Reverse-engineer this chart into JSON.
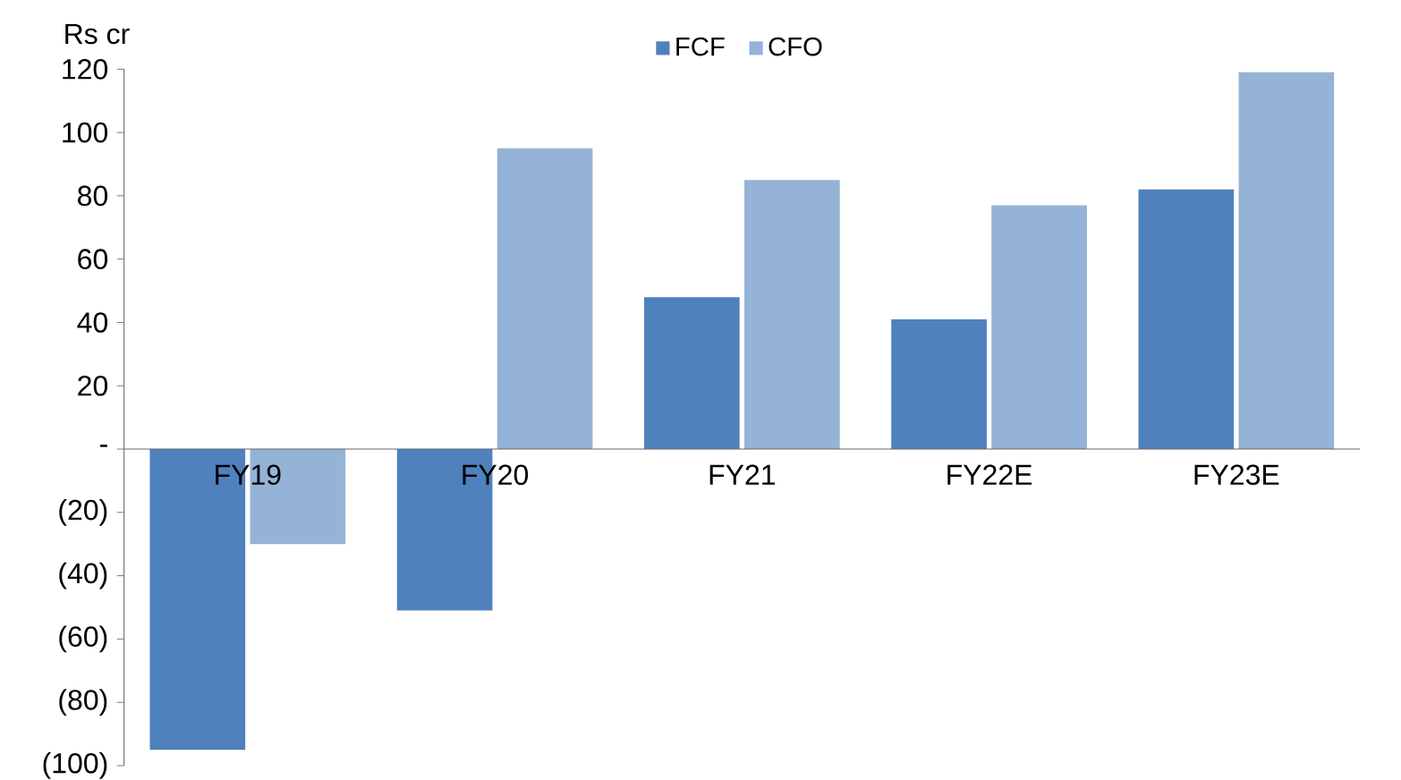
{
  "chart_data": {
    "type": "bar",
    "ylabel": "Rs cr",
    "categories": [
      "FY19",
      "FY20",
      "FY21",
      "FY22E",
      "FY23E"
    ],
    "series": [
      {
        "name": "FCF",
        "color": "#4f81bd",
        "values": [
          -95,
          -51,
          48,
          41,
          82
        ]
      },
      {
        "name": "CFO",
        "color": "#95b3d7",
        "values": [
          -30,
          95,
          85,
          77,
          119
        ]
      }
    ],
    "ylim": [
      -100,
      120
    ],
    "yticks": [
      120,
      100,
      80,
      60,
      40,
      20,
      {
        "value": 0,
        "label": "-"
      },
      {
        "value": -20,
        "label": "(20)"
      },
      {
        "value": -40,
        "label": "(40)"
      },
      {
        "value": -60,
        "label": "(60)"
      },
      {
        "value": -80,
        "label": "(80)"
      },
      {
        "value": -100,
        "label": "(100)"
      }
    ],
    "legend": "top"
  }
}
